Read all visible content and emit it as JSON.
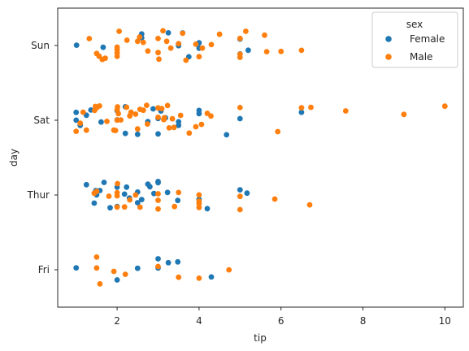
{
  "chart_data": {
    "type": "scatter",
    "subtype": "strip",
    "title": "",
    "xlabel": "tip",
    "ylabel": "day",
    "xlim": [
      0.55,
      10.45
    ],
    "xticks": [
      2,
      4,
      6,
      8,
      10
    ],
    "xtick_labels": [
      "2",
      "4",
      "6",
      "8",
      "10"
    ],
    "categories": [
      "Sun",
      "Sat",
      "Thur",
      "Fri"
    ],
    "grid": false,
    "legend": {
      "title": "sex",
      "placement": "top-right",
      "entries": [
        "Female",
        "Male"
      ]
    },
    "series": [
      {
        "name": "Female",
        "color": "#1f77b4",
        "points": [
          {
            "day": "Sun",
            "x": 1.01
          },
          {
            "day": "Sun",
            "x": 1.66
          },
          {
            "day": "Sun",
            "x": 2.6
          },
          {
            "day": "Sun",
            "x": 2.6
          },
          {
            "day": "Sun",
            "x": 3.5
          },
          {
            "day": "Sun",
            "x": 3.5
          },
          {
            "day": "Sun",
            "x": 3.6
          },
          {
            "day": "Sun",
            "x": 3.75
          },
          {
            "day": "Sun",
            "x": 4.0
          },
          {
            "day": "Sun",
            "x": 4.0
          },
          {
            "day": "Sun",
            "x": 5.0
          },
          {
            "day": "Sun",
            "x": 5.0
          },
          {
            "day": "Sun",
            "x": 5.2
          },
          {
            "day": "Sun",
            "x": 3.25
          },
          {
            "day": "Sat",
            "x": 1.0
          },
          {
            "day": "Sat",
            "x": 1.0
          },
          {
            "day": "Sat",
            "x": 1.1
          },
          {
            "day": "Sat",
            "x": 1.36
          },
          {
            "day": "Sat",
            "x": 1.61
          },
          {
            "day": "Sat",
            "x": 2.0
          },
          {
            "day": "Sat",
            "x": 2.0
          },
          {
            "day": "Sat",
            "x": 2.2
          },
          {
            "day": "Sat",
            "x": 2.2
          },
          {
            "day": "Sat",
            "x": 2.5
          },
          {
            "day": "Sat",
            "x": 2.88
          },
          {
            "day": "Sat",
            "x": 3.0
          },
          {
            "day": "Sat",
            "x": 3.0
          },
          {
            "day": "Sat",
            "x": 3.07
          },
          {
            "day": "Sat",
            "x": 3.18
          },
          {
            "day": "Sat",
            "x": 3.5
          },
          {
            "day": "Sat",
            "x": 3.5
          },
          {
            "day": "Sat",
            "x": 4.0
          },
          {
            "day": "Sat",
            "x": 4.0
          },
          {
            "day": "Sat",
            "x": 4.67
          },
          {
            "day": "Sat",
            "x": 5.0
          },
          {
            "day": "Sat",
            "x": 6.5
          },
          {
            "day": "Sat",
            "x": 2.75
          },
          {
            "day": "Sat",
            "x": 1.25
          },
          {
            "day": "Thur",
            "x": 1.25
          },
          {
            "day": "Thur",
            "x": 1.44
          },
          {
            "day": "Thur",
            "x": 1.48
          },
          {
            "day": "Thur",
            "x": 1.58
          },
          {
            "day": "Thur",
            "x": 1.68
          },
          {
            "day": "Thur",
            "x": 1.83
          },
          {
            "day": "Thur",
            "x": 2.0
          },
          {
            "day": "Thur",
            "x": 2.0
          },
          {
            "day": "Thur",
            "x": 2.18
          },
          {
            "day": "Thur",
            "x": 2.23
          },
          {
            "day": "Thur",
            "x": 2.3
          },
          {
            "day": "Thur",
            "x": 2.5
          },
          {
            "day": "Thur",
            "x": 2.5
          },
          {
            "day": "Thur",
            "x": 2.6
          },
          {
            "day": "Thur",
            "x": 2.75
          },
          {
            "day": "Thur",
            "x": 2.8
          },
          {
            "day": "Thur",
            "x": 2.9
          },
          {
            "day": "Thur",
            "x": 3.0
          },
          {
            "day": "Thur",
            "x": 3.0
          },
          {
            "day": "Thur",
            "x": 3.23
          },
          {
            "day": "Thur",
            "x": 3.48
          },
          {
            "day": "Thur",
            "x": 4.0
          },
          {
            "day": "Thur",
            "x": 4.2
          },
          {
            "day": "Thur",
            "x": 5.0
          },
          {
            "day": "Thur",
            "x": 5.17
          },
          {
            "day": "Thur",
            "x": 1.5
          },
          {
            "day": "Fri",
            "x": 1.0
          },
          {
            "day": "Fri",
            "x": 2.0
          },
          {
            "day": "Fri",
            "x": 2.5
          },
          {
            "day": "Fri",
            "x": 3.0
          },
          {
            "day": "Fri",
            "x": 3.25
          },
          {
            "day": "Fri",
            "x": 3.48
          },
          {
            "day": "Fri",
            "x": 4.3
          },
          {
            "day": "Fri",
            "x": 3.0
          }
        ]
      },
      {
        "name": "Male",
        "color": "#ff7f0e",
        "points": [
          {
            "day": "Sun",
            "x": 1.32
          },
          {
            "day": "Sun",
            "x": 1.5
          },
          {
            "day": "Sun",
            "x": 1.56
          },
          {
            "day": "Sun",
            "x": 1.64
          },
          {
            "day": "Sun",
            "x": 1.71
          },
          {
            "day": "Sun",
            "x": 2.0
          },
          {
            "day": "Sun",
            "x": 2.0
          },
          {
            "day": "Sun",
            "x": 2.0
          },
          {
            "day": "Sun",
            "x": 2.0
          },
          {
            "day": "Sun",
            "x": 2.05
          },
          {
            "day": "Sun",
            "x": 2.24
          },
          {
            "day": "Sun",
            "x": 2.5
          },
          {
            "day": "Sun",
            "x": 2.55
          },
          {
            "day": "Sun",
            "x": 2.64
          },
          {
            "day": "Sun",
            "x": 2.75
          },
          {
            "day": "Sun",
            "x": 3.0
          },
          {
            "day": "Sun",
            "x": 3.0
          },
          {
            "day": "Sun",
            "x": 3.02
          },
          {
            "day": "Sun",
            "x": 3.12
          },
          {
            "day": "Sun",
            "x": 3.21
          },
          {
            "day": "Sun",
            "x": 3.31
          },
          {
            "day": "Sun",
            "x": 3.5
          },
          {
            "day": "Sun",
            "x": 3.6
          },
          {
            "day": "Sun",
            "x": 3.68
          },
          {
            "day": "Sun",
            "x": 3.92
          },
          {
            "day": "Sun",
            "x": 4.0
          },
          {
            "day": "Sun",
            "x": 4.08
          },
          {
            "day": "Sun",
            "x": 4.3
          },
          {
            "day": "Sun",
            "x": 4.5
          },
          {
            "day": "Sun",
            "x": 5.0
          },
          {
            "day": "Sun",
            "x": 5.0
          },
          {
            "day": "Sun",
            "x": 5.0
          },
          {
            "day": "Sun",
            "x": 5.14
          },
          {
            "day": "Sun",
            "x": 5.6
          },
          {
            "day": "Sun",
            "x": 5.65
          },
          {
            "day": "Sun",
            "x": 6.0
          },
          {
            "day": "Sun",
            "x": 6.5
          },
          {
            "day": "Sat",
            "x": 1.0
          },
          {
            "day": "Sat",
            "x": 1.17
          },
          {
            "day": "Sat",
            "x": 1.25
          },
          {
            "day": "Sat",
            "x": 1.45
          },
          {
            "day": "Sat",
            "x": 1.47
          },
          {
            "day": "Sat",
            "x": 1.5
          },
          {
            "day": "Sat",
            "x": 1.57
          },
          {
            "day": "Sat",
            "x": 1.75
          },
          {
            "day": "Sat",
            "x": 1.92
          },
          {
            "day": "Sat",
            "x": 1.96
          },
          {
            "day": "Sat",
            "x": 2.0
          },
          {
            "day": "Sat",
            "x": 2.0
          },
          {
            "day": "Sat",
            "x": 2.01
          },
          {
            "day": "Sat",
            "x": 2.03
          },
          {
            "day": "Sat",
            "x": 2.09
          },
          {
            "day": "Sat",
            "x": 2.23
          },
          {
            "day": "Sat",
            "x": 2.31
          },
          {
            "day": "Sat",
            "x": 2.34
          },
          {
            "day": "Sat",
            "x": 2.45
          },
          {
            "day": "Sat",
            "x": 2.5
          },
          {
            "day": "Sat",
            "x": 2.56
          },
          {
            "day": "Sat",
            "x": 2.64
          },
          {
            "day": "Sat",
            "x": 2.72
          },
          {
            "day": "Sat",
            "x": 2.74
          },
          {
            "day": "Sat",
            "x": 3.0
          },
          {
            "day": "Sat",
            "x": 3.0
          },
          {
            "day": "Sat",
            "x": 3.09
          },
          {
            "day": "Sat",
            "x": 3.14
          },
          {
            "day": "Sat",
            "x": 3.15
          },
          {
            "day": "Sat",
            "x": 3.23
          },
          {
            "day": "Sat",
            "x": 3.27
          },
          {
            "day": "Sat",
            "x": 3.35
          },
          {
            "day": "Sat",
            "x": 3.39
          },
          {
            "day": "Sat",
            "x": 3.55
          },
          {
            "day": "Sat",
            "x": 3.76
          },
          {
            "day": "Sat",
            "x": 3.92
          },
          {
            "day": "Sat",
            "x": 4.06
          },
          {
            "day": "Sat",
            "x": 4.2
          },
          {
            "day": "Sat",
            "x": 4.29
          },
          {
            "day": "Sat",
            "x": 5.0
          },
          {
            "day": "Sat",
            "x": 5.92
          },
          {
            "day": "Sat",
            "x": 6.5
          },
          {
            "day": "Sat",
            "x": 6.73
          },
          {
            "day": "Sat",
            "x": 7.58
          },
          {
            "day": "Sat",
            "x": 9.0
          },
          {
            "day": "Sat",
            "x": 10.0
          },
          {
            "day": "Sat",
            "x": 1.1
          },
          {
            "day": "Thur",
            "x": 1.44
          },
          {
            "day": "Thur",
            "x": 1.5
          },
          {
            "day": "Thur",
            "x": 1.8
          },
          {
            "day": "Thur",
            "x": 2.0
          },
          {
            "day": "Thur",
            "x": 2.0
          },
          {
            "day": "Thur",
            "x": 2.0
          },
          {
            "day": "Thur",
            "x": 2.01
          },
          {
            "day": "Thur",
            "x": 2.18
          },
          {
            "day": "Thur",
            "x": 2.31
          },
          {
            "day": "Thur",
            "x": 2.45
          },
          {
            "day": "Thur",
            "x": 2.56
          },
          {
            "day": "Thur",
            "x": 3.0
          },
          {
            "day": "Thur",
            "x": 3.0
          },
          {
            "day": "Thur",
            "x": 3.0
          },
          {
            "day": "Thur",
            "x": 3.4
          },
          {
            "day": "Thur",
            "x": 3.5
          },
          {
            "day": "Thur",
            "x": 4.0
          },
          {
            "day": "Thur",
            "x": 4.0
          },
          {
            "day": "Thur",
            "x": 4.0
          },
          {
            "day": "Thur",
            "x": 4.0
          },
          {
            "day": "Thur",
            "x": 5.0
          },
          {
            "day": "Thur",
            "x": 5.0
          },
          {
            "day": "Thur",
            "x": 5.85
          },
          {
            "day": "Thur",
            "x": 6.7
          },
          {
            "day": "Fri",
            "x": 1.5
          },
          {
            "day": "Fri",
            "x": 1.5
          },
          {
            "day": "Fri",
            "x": 1.58
          },
          {
            "day": "Fri",
            "x": 1.92
          },
          {
            "day": "Fri",
            "x": 2.2
          },
          {
            "day": "Fri",
            "x": 3.0
          },
          {
            "day": "Fri",
            "x": 3.5
          },
          {
            "day": "Fri",
            "x": 4.0
          },
          {
            "day": "Fri",
            "x": 4.73
          }
        ]
      }
    ]
  }
}
